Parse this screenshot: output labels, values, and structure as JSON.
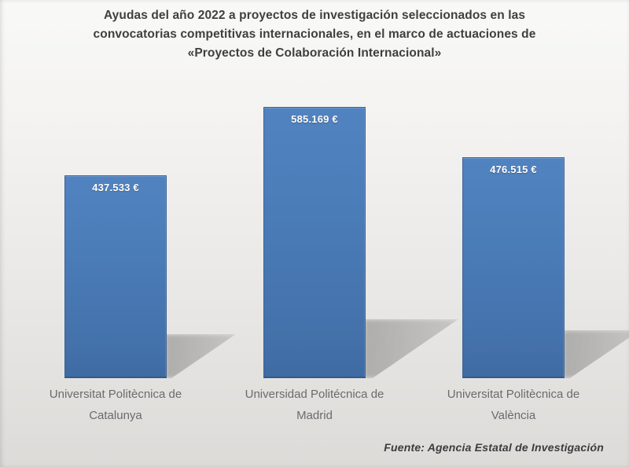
{
  "header": {
    "title_lines": [
      "Ayudas del año 2022 a proyectos de investigación seleccionados en las",
      "convocatorias competitivas internacionales, en el marco de actuaciones de",
      "«Proyectos de Colaboración Internacional»"
    ]
  },
  "colors": {
    "bar_fill": "#4F81BD",
    "bar_border": "#3C6396",
    "title_text": "#3F3F3F",
    "category_text": "#6B6B6B",
    "value_label_text": "#FFFFFF",
    "background_top": "#F9F9F8",
    "background_bottom": "#DCDBD8"
  },
  "chart_data": {
    "type": "bar",
    "title": "Ayudas del año 2022 a proyectos de investigación seleccionados en las convocatorias competitivas internacionales, en el marco de actuaciones de «Proyectos de Colaboración Internacional»",
    "categories": [
      "Universitat Politècnica de Catalunya",
      "Universidad Politécnica de Madrid",
      "Universitat Politècnica de València"
    ],
    "values": [
      437533,
      585169,
      476515
    ],
    "value_labels": [
      "437.533 €",
      "585.169 €",
      "476.515 €"
    ],
    "unit": "€",
    "xlabel": "",
    "ylabel": "",
    "grid": false,
    "legend": false,
    "data_labels": true,
    "value_axis_visible": false,
    "source_note": "Fuente: Agencia Estatal de Investigación"
  }
}
